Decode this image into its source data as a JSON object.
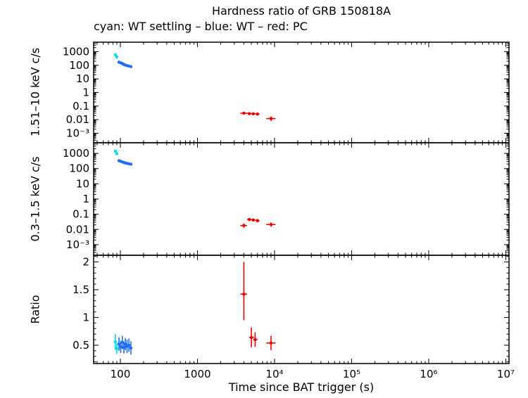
{
  "figure": {
    "title": "Hardness ratio of GRB 150818A",
    "subtitle": "cyan: WT settling – blue: WT – red: PC",
    "xlabel": "Time since BAT trigger (s)"
  },
  "colors": {
    "settling": "#00E0E6",
    "wt": "#1E6EF5",
    "pc": "#F10000"
  },
  "legend": [
    {
      "label": "WT settling",
      "color": "#00E0E6"
    },
    {
      "label": "WT",
      "color": "#1E6EF5"
    },
    {
      "label": "PC",
      "color": "#F10000"
    }
  ],
  "xaxis": {
    "scale": "log",
    "lim": [
      45,
      11000000
    ],
    "ticks": [
      [
        100,
        "100"
      ],
      [
        1000,
        "1000"
      ],
      [
        10000,
        "10⁴"
      ],
      [
        100000,
        "10⁵"
      ],
      [
        1000000,
        "10⁶"
      ],
      [
        10000000,
        "10⁷"
      ]
    ]
  },
  "chart_data": [
    {
      "type": "scatter",
      "panel": "hard_rate",
      "ylabel": "1.51–10 keV c/s",
      "yscale": "log",
      "ylim": [
        0.0002,
        5000
      ],
      "yticks": [
        [
          1000,
          "1000"
        ],
        [
          100,
          "100"
        ],
        [
          10,
          "10"
        ],
        [
          1,
          "1"
        ],
        [
          0.1,
          "0.1"
        ],
        [
          0.01,
          "0.01"
        ],
        [
          0.001,
          "10⁻³"
        ]
      ],
      "series": [
        {
          "name": "WT settling",
          "color": "settling",
          "points": [
            {
              "x": 86,
              "y": 600
            },
            {
              "x": 90,
              "y": 420
            }
          ]
        },
        {
          "name": "WT",
          "color": "wt",
          "points": [
            {
              "x": 96,
              "y": 170
            },
            {
              "x": 101,
              "y": 150
            },
            {
              "x": 106,
              "y": 135
            },
            {
              "x": 111,
              "y": 115
            },
            {
              "x": 116,
              "y": 105
            },
            {
              "x": 122,
              "y": 95
            },
            {
              "x": 129,
              "y": 88
            },
            {
              "x": 137,
              "y": 80
            }
          ]
        },
        {
          "name": "PC",
          "color": "pc",
          "points": [
            {
              "x": 4000,
              "ex": [
                3600,
                4400
              ],
              "y": 0.03,
              "ey": [
                0.024,
                0.037
              ]
            },
            {
              "x": 4700,
              "ex": [
                4400,
                5000
              ],
              "y": 0.028,
              "ey": [
                0.022,
                0.034
              ]
            },
            {
              "x": 5300,
              "ex": [
                5000,
                5700
              ],
              "y": 0.027,
              "ey": [
                0.021,
                0.033
              ]
            },
            {
              "x": 6000,
              "ex": [
                5700,
                6400
              ],
              "y": 0.026,
              "ey": [
                0.02,
                0.032
              ]
            },
            {
              "x": 9000,
              "ex": [
                7800,
                10300
              ],
              "y": 0.012,
              "ey": [
                0.008,
                0.017
              ]
            }
          ]
        }
      ]
    },
    {
      "type": "scatter",
      "panel": "soft_rate",
      "ylabel": "0.3–1.5 keV c/s",
      "yscale": "log",
      "ylim": [
        0.0002,
        5000
      ],
      "yticks": [
        [
          1000,
          "1000"
        ],
        [
          100,
          "100"
        ],
        [
          10,
          "10"
        ],
        [
          1,
          "1"
        ],
        [
          0.1,
          "0.1"
        ],
        [
          0.01,
          "0.01"
        ],
        [
          0.001,
          "10⁻³"
        ]
      ],
      "series": [
        {
          "name": "WT settling",
          "color": "settling",
          "points": [
            {
              "x": 86,
              "y": 1400
            },
            {
              "x": 90,
              "y": 950
            }
          ]
        },
        {
          "name": "WT",
          "color": "wt",
          "points": [
            {
              "x": 96,
              "y": 330
            },
            {
              "x": 101,
              "y": 300
            },
            {
              "x": 106,
              "y": 275
            },
            {
              "x": 111,
              "y": 250
            },
            {
              "x": 116,
              "y": 235
            },
            {
              "x": 122,
              "y": 220
            },
            {
              "x": 129,
              "y": 205
            },
            {
              "x": 137,
              "y": 195
            }
          ]
        },
        {
          "name": "PC",
          "color": "pc",
          "points": [
            {
              "x": 4000,
              "ex": [
                3600,
                4400
              ],
              "y": 0.018,
              "ey": [
                0.013,
                0.024
              ]
            },
            {
              "x": 4700,
              "ex": [
                4400,
                5000
              ],
              "y": 0.045,
              "ey": [
                0.035,
                0.056
              ]
            },
            {
              "x": 5300,
              "ex": [
                5000,
                5700
              ],
              "y": 0.042,
              "ey": [
                0.033,
                0.052
              ]
            },
            {
              "x": 6000,
              "ex": [
                5700,
                6400
              ],
              "y": 0.038,
              "ey": [
                0.029,
                0.048
              ]
            },
            {
              "x": 9000,
              "ex": [
                7800,
                10300
              ],
              "y": 0.021,
              "ey": [
                0.015,
                0.028
              ]
            }
          ]
        }
      ]
    },
    {
      "type": "scatter",
      "panel": "hardness_ratio",
      "ylabel": "Ratio",
      "yscale": "linear",
      "ylim": [
        0.17,
        2.12
      ],
      "yticks": [
        [
          2,
          "2"
        ],
        [
          1.5,
          "1.5"
        ],
        [
          1,
          "1"
        ],
        [
          0.5,
          "0.5"
        ]
      ],
      "series": [
        {
          "name": "WT settling",
          "color": "settling",
          "points": [
            {
              "x": 86,
              "y": 0.56,
              "ey": [
                0.42,
                0.7
              ]
            },
            {
              "x": 90,
              "y": 0.44,
              "ey": [
                0.34,
                0.54
              ]
            }
          ]
        },
        {
          "name": "WT",
          "color": "wt",
          "points": [
            {
              "x": 96,
              "y": 0.52,
              "ey": [
                0.4,
                0.64
              ]
            },
            {
              "x": 101,
              "y": 0.47,
              "ey": [
                0.36,
                0.58
              ]
            },
            {
              "x": 106,
              "y": 0.55,
              "ey": [
                0.43,
                0.67
              ]
            },
            {
              "x": 111,
              "y": 0.46,
              "ey": [
                0.35,
                0.57
              ]
            },
            {
              "x": 116,
              "y": 0.52,
              "ey": [
                0.41,
                0.63
              ]
            },
            {
              "x": 122,
              "y": 0.48,
              "ey": [
                0.36,
                0.6
              ]
            },
            {
              "x": 129,
              "y": 0.5,
              "ey": [
                0.38,
                0.62
              ]
            },
            {
              "x": 137,
              "y": 0.45,
              "ey": [
                0.33,
                0.57
              ]
            }
          ]
        },
        {
          "name": "PC",
          "color": "pc",
          "points": [
            {
              "x": 4000,
              "ex": [
                3600,
                4400
              ],
              "y": 1.42,
              "ey": [
                0.95,
                2.0
              ]
            },
            {
              "x": 5000,
              "ex": [
                4700,
                5400
              ],
              "y": 0.64,
              "ey": [
                0.46,
                0.82
              ]
            },
            {
              "x": 5600,
              "ex": [
                5300,
                6000
              ],
              "y": 0.6,
              "ey": [
                0.47,
                0.73
              ]
            },
            {
              "x": 9000,
              "ex": [
                7800,
                10300
              ],
              "y": 0.54,
              "ey": [
                0.41,
                0.67
              ]
            }
          ]
        }
      ]
    }
  ]
}
